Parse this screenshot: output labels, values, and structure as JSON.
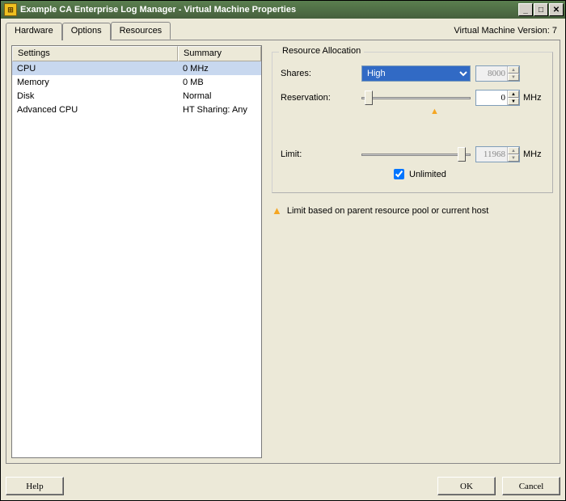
{
  "window": {
    "title": "Example CA Enterprise Log Manager - Virtual Machine Properties"
  },
  "version_label": "Virtual Machine Version: 7",
  "tabs": {
    "hardware": "Hardware",
    "options": "Options",
    "resources": "Resources"
  },
  "table": {
    "columns": {
      "settings": "Settings",
      "summary": "Summary"
    },
    "rows": [
      {
        "setting": "CPU",
        "summary": "0 MHz",
        "selected": true
      },
      {
        "setting": "Memory",
        "summary": "0 MB",
        "selected": false
      },
      {
        "setting": "Disk",
        "summary": "Normal",
        "selected": false
      },
      {
        "setting": "Advanced CPU",
        "summary": "HT Sharing: Any",
        "selected": false
      }
    ]
  },
  "resource_allocation": {
    "group_title": "Resource Allocation",
    "shares": {
      "label": "Shares:",
      "selected": "High",
      "value": "8000",
      "value_disabled": true
    },
    "reservation": {
      "label": "Reservation:",
      "value": "0",
      "unit": "MHz",
      "slider_pos_pct": 3,
      "marker_pos_pct": 63
    },
    "limit": {
      "label": "Limit:",
      "value": "11968",
      "unit": "MHz",
      "value_disabled": true,
      "slider_pos_pct": 88
    },
    "unlimited": {
      "label": "Unlimited",
      "checked": true
    }
  },
  "warning_text": "Limit based on parent resource pool or current host",
  "buttons": {
    "help": "Help",
    "ok": "OK",
    "cancel": "Cancel"
  },
  "colors": {
    "bg": "#ece9d8",
    "select_bg": "#316ac5",
    "row_select": "#c8d8ef",
    "warning": "#f5a623"
  }
}
